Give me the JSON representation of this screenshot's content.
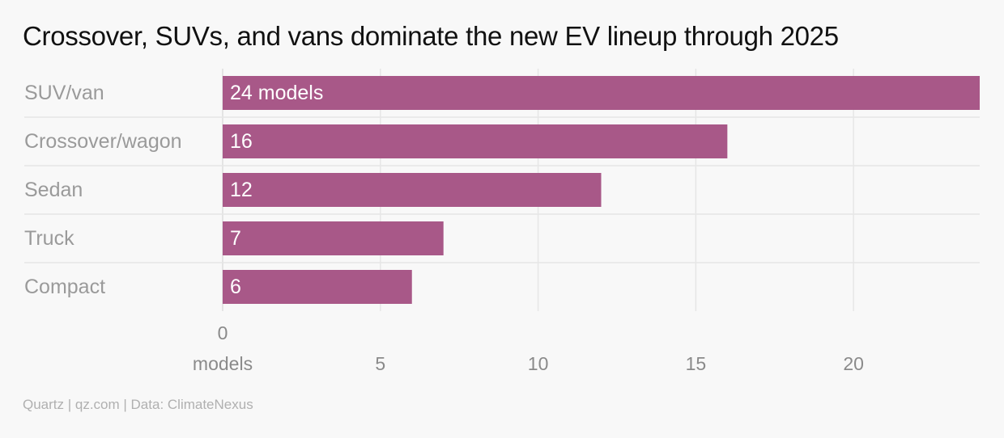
{
  "title": "Crossover, SUVs, and vans dominate the new EV lineup through 2025",
  "footer": "Quartz | qz.com | Data: ClimateNexus",
  "colors": {
    "bar": "#a85888",
    "background": "#f8f8f8",
    "grid": "#e6e6e6",
    "category_text": "#9a9a9a",
    "tick_text": "#8a8a8a",
    "bar_label": "#ffffff"
  },
  "chart_data": {
    "type": "bar",
    "orientation": "horizontal",
    "title": "Crossover, SUVs, and vans dominate the new EV lineup through 2025",
    "categories": [
      "SUV/van",
      "Crossover/wagon",
      "Sedan",
      "Truck",
      "Compact"
    ],
    "values": [
      24,
      16,
      12,
      7,
      6
    ],
    "data_labels": [
      "24 models",
      "16",
      "12",
      "7",
      "6"
    ],
    "x_ticks": [
      0,
      5,
      10,
      15,
      20
    ],
    "x_tick_labels": [
      "0",
      "5",
      "10",
      "15",
      "20"
    ],
    "xlabel": "models",
    "xlim": [
      0,
      24
    ],
    "grid": true,
    "legend": "none"
  }
}
